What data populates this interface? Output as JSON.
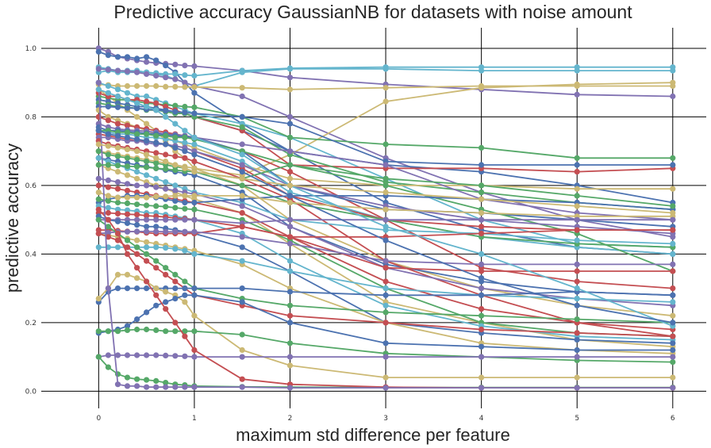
{
  "chart_data": {
    "type": "line",
    "title": "Predictive accuracy GaussianNB for datasets with noise amount",
    "xlabel": "maximum std difference per feature",
    "ylabel": "predictive accuracy",
    "xlim": [
      -0.6,
      6.35
    ],
    "ylim": [
      -0.05,
      1.06
    ],
    "xticks": [
      0,
      1,
      2,
      3,
      4,
      5,
      6
    ],
    "yticks": [
      0.0,
      0.2,
      0.4,
      0.6,
      0.8,
      1.0
    ],
    "xtick_labels": [
      "0",
      "1",
      "2",
      "3",
      "4",
      "5",
      "6"
    ],
    "ytick_labels": [
      "0.0",
      "0.2",
      "0.4",
      "0.6",
      "0.8",
      "1.0"
    ],
    "grid": true,
    "legend": "none",
    "x": [
      0,
      0.1,
      0.2,
      0.3,
      0.4,
      0.5,
      0.6,
      0.7,
      0.8,
      0.9,
      1.0,
      1.5,
      2,
      3,
      4,
      5,
      6
    ],
    "palette": [
      "#4c72b0",
      "#55a868",
      "#c44e52",
      "#8172b2",
      "#ccb974",
      "#64b5cd"
    ],
    "series": [
      {
        "color": "#8172b2",
        "values": [
          1.0,
          0.99,
          0.975,
          0.97,
          0.965,
          0.96,
          0.957,
          0.955,
          0.953,
          0.95,
          0.948,
          0.935,
          0.915,
          0.895,
          0.88,
          0.865,
          0.86
        ]
      },
      {
        "color": "#4c72b0",
        "values": [
          0.99,
          0.98,
          0.975,
          0.975,
          0.97,
          0.975,
          0.965,
          0.95,
          0.93,
          0.9,
          0.87,
          0.78,
          0.7,
          0.55,
          0.47,
          0.42,
          0.4
        ]
      },
      {
        "color": "#64b5cd",
        "values": [
          0.93,
          0.935,
          0.93,
          0.93,
          0.93,
          0.93,
          0.928,
          0.925,
          0.925,
          0.922,
          0.92,
          0.935,
          0.942,
          0.945,
          0.945,
          0.945,
          0.945
        ]
      },
      {
        "color": "#64b5cd",
        "values": [
          0.945,
          0.94,
          0.935,
          0.935,
          0.935,
          0.93,
          0.925,
          0.92,
          0.91,
          0.9,
          0.89,
          0.93,
          0.94,
          0.94,
          0.935,
          0.935,
          0.935
        ]
      },
      {
        "color": "#8172b2",
        "values": [
          0.94,
          0.938,
          0.935,
          0.933,
          0.93,
          0.925,
          0.92,
          0.915,
          0.91,
          0.9,
          0.89,
          0.86,
          0.8,
          0.68,
          0.58,
          0.5,
          0.45
        ]
      },
      {
        "color": "#ccb974",
        "values": [
          0.895,
          0.893,
          0.89,
          0.89,
          0.89,
          0.89,
          0.89,
          0.888,
          0.888,
          0.887,
          0.887,
          0.885,
          0.88,
          0.885,
          0.89,
          0.89,
          0.89
        ]
      },
      {
        "color": "#ccb974",
        "values": [
          0.88,
          0.86,
          0.84,
          0.82,
          0.8,
          0.78,
          0.76,
          0.73,
          0.7,
          0.68,
          0.65,
          0.63,
          0.69,
          0.845,
          0.885,
          0.895,
          0.9
        ]
      },
      {
        "color": "#64b5cd",
        "values": [
          0.9,
          0.89,
          0.88,
          0.87,
          0.86,
          0.86,
          0.85,
          0.84,
          0.83,
          0.82,
          0.81,
          0.78,
          0.74,
          0.62,
          0.5,
          0.43,
          0.42
        ]
      },
      {
        "color": "#55a868",
        "values": [
          0.86,
          0.855,
          0.85,
          0.85,
          0.845,
          0.84,
          0.838,
          0.835,
          0.833,
          0.83,
          0.828,
          0.8,
          0.74,
          0.72,
          0.71,
          0.68,
          0.68
        ]
      },
      {
        "color": "#4c72b0",
        "values": [
          0.85,
          0.845,
          0.84,
          0.835,
          0.83,
          0.83,
          0.825,
          0.82,
          0.815,
          0.81,
          0.8,
          0.76,
          0.7,
          0.66,
          0.64,
          0.6,
          0.55
        ]
      },
      {
        "color": "#c44e52",
        "values": [
          0.87,
          0.86,
          0.86,
          0.85,
          0.85,
          0.845,
          0.84,
          0.83,
          0.82,
          0.81,
          0.8,
          0.76,
          0.66,
          0.65,
          0.65,
          0.64,
          0.65
        ]
      },
      {
        "color": "#55a868",
        "values": [
          0.84,
          0.835,
          0.83,
          0.828,
          0.825,
          0.82,
          0.82,
          0.815,
          0.81,
          0.81,
          0.8,
          0.77,
          0.69,
          0.61,
          0.58,
          0.55,
          0.53
        ]
      },
      {
        "color": "#4c72b0",
        "values": [
          0.83,
          0.83,
          0.828,
          0.826,
          0.825,
          0.822,
          0.82,
          0.818,
          0.815,
          0.813,
          0.81,
          0.8,
          0.78,
          0.67,
          0.66,
          0.66,
          0.66
        ]
      },
      {
        "color": "#ccb974",
        "values": [
          0.82,
          0.8,
          0.79,
          0.78,
          0.77,
          0.76,
          0.75,
          0.74,
          0.73,
          0.72,
          0.71,
          0.66,
          0.62,
          0.6,
          0.6,
          0.59,
          0.59
        ]
      },
      {
        "color": "#c44e52",
        "values": [
          0.8,
          0.79,
          0.78,
          0.775,
          0.77,
          0.765,
          0.76,
          0.755,
          0.75,
          0.745,
          0.74,
          0.7,
          0.64,
          0.5,
          0.36,
          0.32,
          0.3
        ]
      },
      {
        "color": "#8172b2",
        "values": [
          0.78,
          0.77,
          0.765,
          0.762,
          0.76,
          0.758,
          0.755,
          0.75,
          0.748,
          0.745,
          0.74,
          0.72,
          0.7,
          0.66,
          0.56,
          0.52,
          0.5
        ]
      },
      {
        "color": "#4c72b0",
        "values": [
          0.77,
          0.76,
          0.76,
          0.758,
          0.755,
          0.752,
          0.75,
          0.748,
          0.745,
          0.742,
          0.74,
          0.7,
          0.6,
          0.53,
          0.52,
          0.5,
          0.48
        ]
      },
      {
        "color": "#64b5cd",
        "values": [
          0.76,
          0.755,
          0.75,
          0.75,
          0.745,
          0.74,
          0.74,
          0.735,
          0.73,
          0.725,
          0.72,
          0.67,
          0.58,
          0.5,
          0.45,
          0.42,
          0.4
        ]
      },
      {
        "color": "#55a868",
        "values": [
          0.76,
          0.76,
          0.755,
          0.755,
          0.75,
          0.75,
          0.745,
          0.745,
          0.74,
          0.74,
          0.735,
          0.7,
          0.66,
          0.6,
          0.53,
          0.46,
          0.35
        ]
      },
      {
        "color": "#c44e52",
        "values": [
          0.75,
          0.745,
          0.74,
          0.735,
          0.73,
          0.73,
          0.725,
          0.72,
          0.715,
          0.71,
          0.7,
          0.65,
          0.57,
          0.5,
          0.48,
          0.47,
          0.47
        ]
      },
      {
        "color": "#8172b2",
        "values": [
          0.74,
          0.74,
          0.735,
          0.73,
          0.73,
          0.725,
          0.72,
          0.72,
          0.715,
          0.71,
          0.7,
          0.66,
          0.6,
          0.54,
          0.5,
          0.48,
          0.46
        ]
      },
      {
        "color": "#ccb974",
        "values": [
          0.7,
          0.695,
          0.69,
          0.685,
          0.68,
          0.675,
          0.67,
          0.665,
          0.66,
          0.655,
          0.65,
          0.6,
          0.5,
          0.38,
          0.3,
          0.25,
          0.22
        ]
      },
      {
        "color": "#55a868",
        "values": [
          0.7,
          0.69,
          0.685,
          0.68,
          0.675,
          0.67,
          0.665,
          0.66,
          0.655,
          0.65,
          0.64,
          0.6,
          0.55,
          0.5,
          0.45,
          0.43,
          0.42
        ]
      },
      {
        "color": "#4c72b0",
        "values": [
          0.68,
          0.675,
          0.67,
          0.665,
          0.66,
          0.655,
          0.65,
          0.645,
          0.64,
          0.635,
          0.63,
          0.58,
          0.48,
          0.37,
          0.32,
          0.29,
          0.28
        ]
      },
      {
        "color": "#c44e52",
        "values": [
          0.73,
          0.72,
          0.715,
          0.71,
          0.705,
          0.7,
          0.695,
          0.69,
          0.685,
          0.68,
          0.67,
          0.62,
          0.56,
          0.38,
          0.28,
          0.2,
          0.16
        ]
      },
      {
        "color": "#64b5cd",
        "values": [
          0.68,
          0.67,
          0.66,
          0.65,
          0.64,
          0.63,
          0.62,
          0.61,
          0.6,
          0.59,
          0.58,
          0.55,
          0.5,
          0.47,
          0.46,
          0.44,
          0.43
        ]
      },
      {
        "color": "#ccb974",
        "values": [
          0.66,
          0.65,
          0.64,
          0.63,
          0.62,
          0.61,
          0.6,
          0.59,
          0.58,
          0.57,
          0.56,
          0.52,
          0.43,
          0.26,
          0.2,
          0.15,
          0.13
        ]
      },
      {
        "color": "#8172b2",
        "values": [
          0.62,
          0.615,
          0.61,
          0.605,
          0.6,
          0.6,
          0.595,
          0.59,
          0.585,
          0.58,
          0.575,
          0.54,
          0.48,
          0.36,
          0.3,
          0.27,
          0.25
        ]
      },
      {
        "color": "#c44e52",
        "values": [
          0.6,
          0.595,
          0.59,
          0.585,
          0.58,
          0.575,
          0.57,
          0.565,
          0.56,
          0.555,
          0.55,
          0.52,
          0.45,
          0.36,
          0.35,
          0.35,
          0.35
        ]
      },
      {
        "color": "#4c72b0",
        "values": [
          0.55,
          0.56,
          0.565,
          0.57,
          0.57,
          0.57,
          0.565,
          0.56,
          0.555,
          0.55,
          0.55,
          0.56,
          0.57,
          0.57,
          0.56,
          0.55,
          0.53
        ]
      },
      {
        "color": "#55a868",
        "values": [
          0.56,
          0.555,
          0.55,
          0.548,
          0.545,
          0.542,
          0.54,
          0.538,
          0.535,
          0.532,
          0.53,
          0.5,
          0.44,
          0.3,
          0.2,
          0.17,
          0.16
        ]
      },
      {
        "color": "#ccb974",
        "values": [
          0.58,
          0.57,
          0.565,
          0.565,
          0.565,
          0.565,
          0.568,
          0.568,
          0.57,
          0.57,
          0.57,
          0.57,
          0.55,
          0.53,
          0.52,
          0.51,
          0.51
        ]
      },
      {
        "color": "#64b5cd",
        "values": [
          0.54,
          0.535,
          0.53,
          0.528,
          0.525,
          0.52,
          0.52,
          0.515,
          0.51,
          0.505,
          0.5,
          0.46,
          0.38,
          0.25,
          0.19,
          0.16,
          0.15
        ]
      },
      {
        "color": "#c44e52",
        "values": [
          0.52,
          0.52,
          0.518,
          0.516,
          0.515,
          0.512,
          0.51,
          0.508,
          0.505,
          0.503,
          0.5,
          0.48,
          0.45,
          0.32,
          0.24,
          0.2,
          0.18
        ]
      },
      {
        "color": "#8172b2",
        "values": [
          0.5,
          0.5,
          0.5,
          0.5,
          0.5,
          0.5,
          0.5,
          0.5,
          0.5,
          0.5,
          0.5,
          0.49,
          0.5,
          0.5,
          0.5,
          0.5,
          0.5
        ]
      },
      {
        "color": "#4c72b0",
        "values": [
          0.51,
          0.5,
          0.495,
          0.49,
          0.485,
          0.48,
          0.48,
          0.475,
          0.47,
          0.465,
          0.46,
          0.42,
          0.35,
          0.2,
          0.17,
          0.15,
          0.14
        ]
      },
      {
        "color": "#c44e52",
        "values": [
          0.47,
          0.47,
          0.468,
          0.466,
          0.465,
          0.462,
          0.46,
          0.46,
          0.46,
          0.46,
          0.46,
          0.48,
          0.45,
          0.45,
          0.46,
          0.47,
          0.47
        ]
      },
      {
        "color": "#ccb974",
        "values": [
          0.46,
          0.455,
          0.45,
          0.445,
          0.44,
          0.435,
          0.43,
          0.425,
          0.42,
          0.415,
          0.41,
          0.37,
          0.3,
          0.2,
          0.14,
          0.12,
          0.11
        ]
      },
      {
        "color": "#8172b2",
        "values": [
          0.46,
          0.462,
          0.465,
          0.465,
          0.466,
          0.466,
          0.466,
          0.465,
          0.465,
          0.465,
          0.465,
          0.45,
          0.43,
          0.38,
          0.37,
          0.37,
          0.37
        ]
      },
      {
        "color": "#64b5cd",
        "values": [
          0.42,
          0.42,
          0.42,
          0.42,
          0.42,
          0.42,
          0.42,
          0.418,
          0.415,
          0.41,
          0.4,
          0.38,
          0.35,
          0.3,
          0.28,
          0.27,
          0.26
        ]
      },
      {
        "color": "#c44e52",
        "values": [
          0.46,
          0.45,
          0.44,
          0.42,
          0.4,
          0.38,
          0.36,
          0.34,
          0.32,
          0.3,
          0.28,
          0.25,
          0.22,
          0.2,
          0.18,
          0.17,
          0.16
        ]
      },
      {
        "color": "#55a868",
        "values": [
          0.5,
          0.48,
          0.46,
          0.44,
          0.42,
          0.4,
          0.38,
          0.36,
          0.34,
          0.32,
          0.3,
          0.27,
          0.25,
          0.23,
          0.22,
          0.21,
          0.2
        ]
      },
      {
        "color": "#4c72b0",
        "values": [
          0.26,
          0.29,
          0.3,
          0.3,
          0.3,
          0.3,
          0.3,
          0.3,
          0.3,
          0.3,
          0.3,
          0.3,
          0.29,
          0.28,
          0.28,
          0.29,
          0.28
        ]
      },
      {
        "color": "#ccb974",
        "values": [
          0.27,
          0.3,
          0.34,
          0.34,
          0.33,
          0.32,
          0.3,
          0.29,
          0.28,
          0.26,
          0.22,
          0.12,
          0.075,
          0.04,
          0.04,
          0.04,
          0.04
        ]
      },
      {
        "color": "#4c72b0",
        "values": [
          0.17,
          0.175,
          0.18,
          0.19,
          0.21,
          0.23,
          0.25,
          0.26,
          0.27,
          0.28,
          0.28,
          0.26,
          0.2,
          0.14,
          0.13,
          0.12,
          0.12
        ]
      },
      {
        "color": "#55a868",
        "values": [
          0.175,
          0.175,
          0.175,
          0.178,
          0.18,
          0.18,
          0.178,
          0.175,
          0.175,
          0.175,
          0.175,
          0.165,
          0.14,
          0.11,
          0.1,
          0.09,
          0.085
        ]
      },
      {
        "color": "#8172b2",
        "values": [
          0.1,
          0.105,
          0.105,
          0.105,
          0.105,
          0.105,
          0.105,
          0.104,
          0.103,
          0.102,
          0.1,
          0.1,
          0.1,
          0.1,
          0.1,
          0.1,
          0.1
        ]
      },
      {
        "color": "#55a868",
        "values": [
          0.1,
          0.07,
          0.05,
          0.04,
          0.035,
          0.033,
          0.03,
          0.025,
          0.02,
          0.018,
          0.015,
          0.013,
          0.012,
          0.011,
          0.011,
          0.011,
          0.011
        ]
      },
      {
        "color": "#c44e52",
        "values": [
          0.53,
          0.5,
          0.46,
          0.4,
          0.36,
          0.32,
          0.28,
          0.24,
          0.2,
          0.16,
          0.12,
          0.035,
          0.02,
          0.012,
          0.01,
          0.01,
          0.01
        ]
      },
      {
        "color": "#8172b2",
        "values": [
          0.9,
          0.3,
          0.02,
          0.015,
          0.015,
          0.012,
          0.012,
          0.012,
          0.012,
          0.012,
          0.012,
          0.012,
          0.01,
          0.01,
          0.01,
          0.01,
          0.01
        ]
      },
      {
        "color": "#64b5cd",
        "values": [
          0.88,
          0.87,
          0.86,
          0.85,
          0.84,
          0.83,
          0.82,
          0.8,
          0.78,
          0.76,
          0.74,
          0.69,
          0.6,
          0.48,
          0.4,
          0.3,
          0.19
        ]
      },
      {
        "color": "#55a868",
        "values": [
          0.66,
          0.66,
          0.658,
          0.656,
          0.655,
          0.653,
          0.65,
          0.648,
          0.645,
          0.642,
          0.64,
          0.62,
          0.66,
          0.62,
          0.6,
          0.57,
          0.54
        ]
      },
      {
        "color": "#ccb974",
        "values": [
          0.72,
          0.715,
          0.71,
          0.705,
          0.7,
          0.69,
          0.68,
          0.67,
          0.66,
          0.65,
          0.64,
          0.62,
          0.6,
          0.58,
          0.56,
          0.54,
          0.52
        ]
      },
      {
        "color": "#4c72b0",
        "values": [
          0.76,
          0.75,
          0.745,
          0.74,
          0.735,
          0.73,
          0.725,
          0.72,
          0.71,
          0.7,
          0.69,
          0.64,
          0.57,
          0.44,
          0.33,
          0.25,
          0.2
        ]
      }
    ]
  }
}
